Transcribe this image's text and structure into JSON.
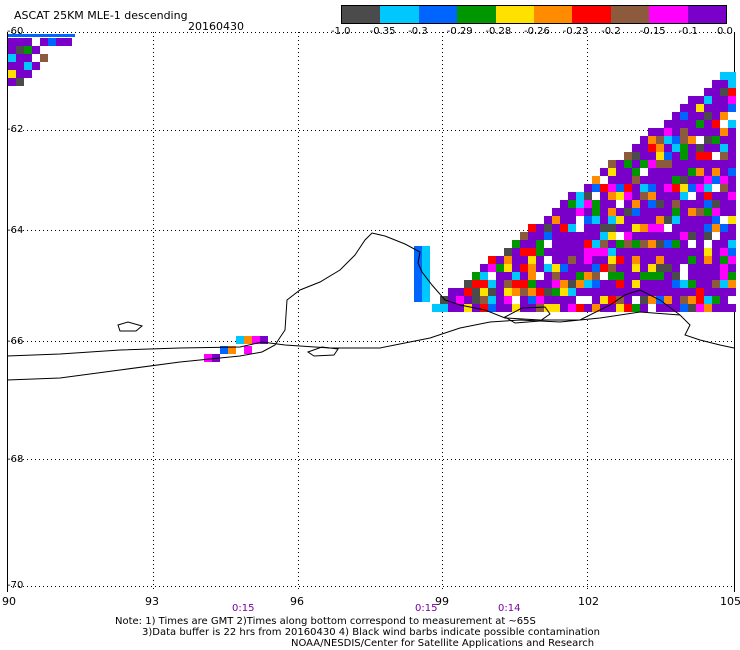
{
  "header": {
    "title": "ASCAT 25KM MLE-1 descending",
    "date": "20160430"
  },
  "colorbar": {
    "colors": [
      "#4b4b4b",
      "#00c8ff",
      "#0064ff",
      "#009600",
      "#ffe100",
      "#ff8c00",
      "#ff0000",
      "#8c5a3c",
      "#ff00ff",
      "#7800c8"
    ],
    "tick_labels": [
      "-1.0",
      "-0.35",
      "-0.3",
      "-0.29",
      "-0.28",
      "-0.26",
      "-0.23",
      "-0.2",
      "-0.15",
      "-0.1",
      "0.0"
    ]
  },
  "map": {
    "lat_labels": [
      "-60",
      "-62",
      "-64",
      "-66",
      "-68",
      "-70"
    ],
    "lon_labels": [
      "90",
      "93",
      "96",
      "99",
      "102",
      "105"
    ],
    "time_labels": [
      "0:15",
      "0:15",
      "0:14"
    ]
  },
  "notes": {
    "line1": "Note: 1) Times are GMT 2)Times along bottom correspond to measurement at ~65S",
    "line2": "3)Data buffer is 22 hrs from 20160430 4) Black wind barbs indicate possible contamination",
    "line3": "NOAA/NESDIS/Center for Satellite Applications and Research"
  }
}
